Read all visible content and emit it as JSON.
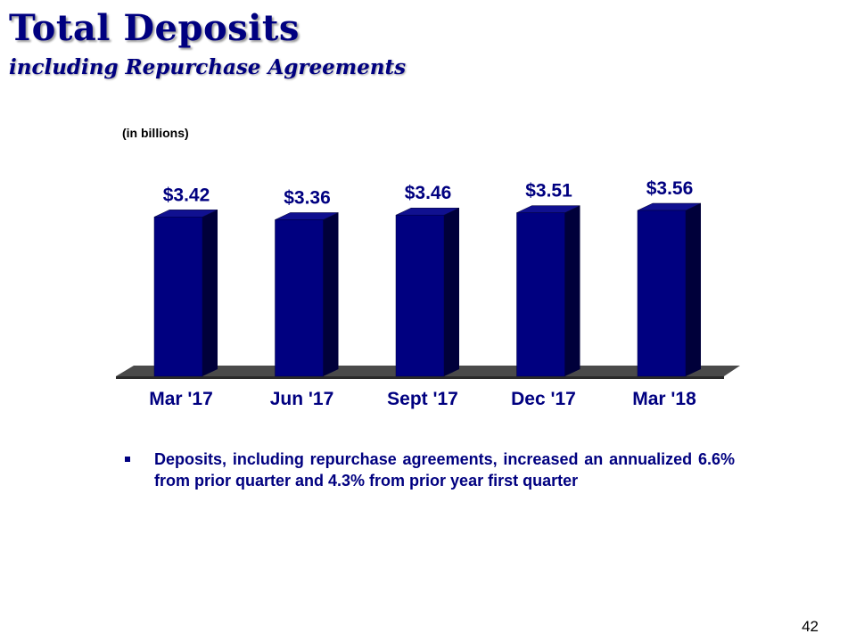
{
  "slide": {
    "title": "Total Deposits",
    "subtitle": "including Repurchase Agreements",
    "units_note": "(in billions)",
    "bullet": "Deposits, including repurchase agreements, increased an annualized 6.6% from prior quarter and 4.3% from prior year first quarter",
    "page_number": "42"
  },
  "colors": {
    "title": "#000080",
    "bar_front": "#000080",
    "bar_side": "#00003a",
    "bar_top": "#101090",
    "floor": "#2a2a2a"
  },
  "chart_data": {
    "type": "bar",
    "categories": [
      "Mar '17",
      "Jun '17",
      "Sept '17",
      "Dec '17",
      "Mar '18"
    ],
    "values": [
      3.42,
      3.36,
      3.46,
      3.51,
      3.56
    ],
    "data_labels": [
      "$3.42",
      "$3.36",
      "$3.46",
      "$3.51",
      "$3.56"
    ],
    "xlabel": "",
    "ylabel": "",
    "ylim": [
      0,
      3.56
    ],
    "grid": false,
    "legend": "none"
  }
}
